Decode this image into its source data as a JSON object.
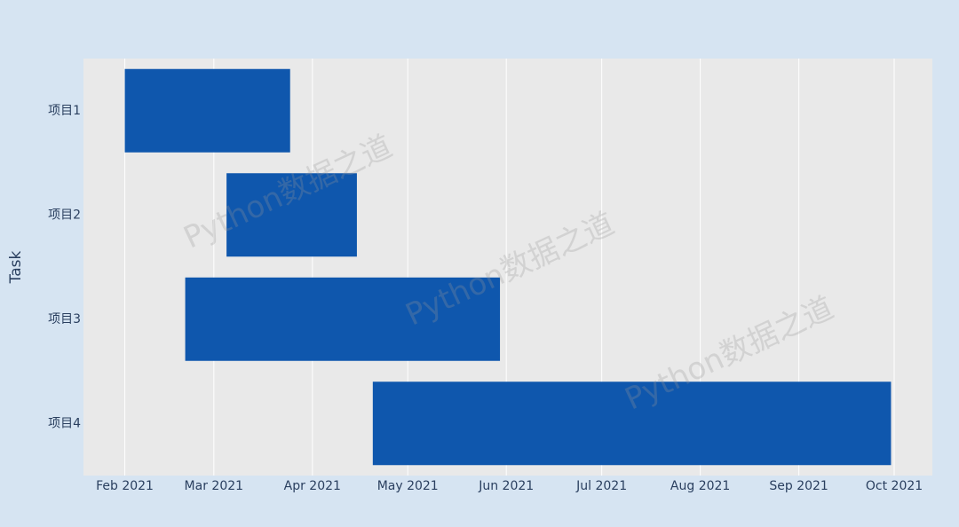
{
  "chart_data": {
    "type": "timeline",
    "y_label": "Task",
    "categories": [
      "项目1",
      "项目2",
      "项目3",
      "项目4"
    ],
    "tasks": [
      {
        "start": "2021-02-01",
        "end": "2021-03-25"
      },
      {
        "start": "2021-03-05",
        "end": "2021-04-15"
      },
      {
        "start": "2021-02-20",
        "end": "2021-05-30"
      },
      {
        "start": "2021-04-20",
        "end": "2021-09-30"
      }
    ],
    "color": "#0f57ad",
    "xlim": [
      "2021-01-19",
      "2021-10-13"
    ],
    "xticks": [
      {
        "value": "2021-02-01",
        "label": "Feb 2021"
      },
      {
        "value": "2021-03-01",
        "label": "Mar 2021"
      },
      {
        "value": "2021-04-01",
        "label": "Apr 2021"
      },
      {
        "value": "2021-05-01",
        "label": "May 2021"
      },
      {
        "value": "2021-06-01",
        "label": "Jun 2021"
      },
      {
        "value": "2021-07-01",
        "label": "Jul 2021"
      },
      {
        "value": "2021-08-01",
        "label": "Aug 2021"
      },
      {
        "value": "2021-09-01",
        "label": "Sep 2021"
      },
      {
        "value": "2021-10-01",
        "label": "Oct 2021"
      }
    ],
    "grid": true,
    "watermark": "Python数据之道"
  }
}
